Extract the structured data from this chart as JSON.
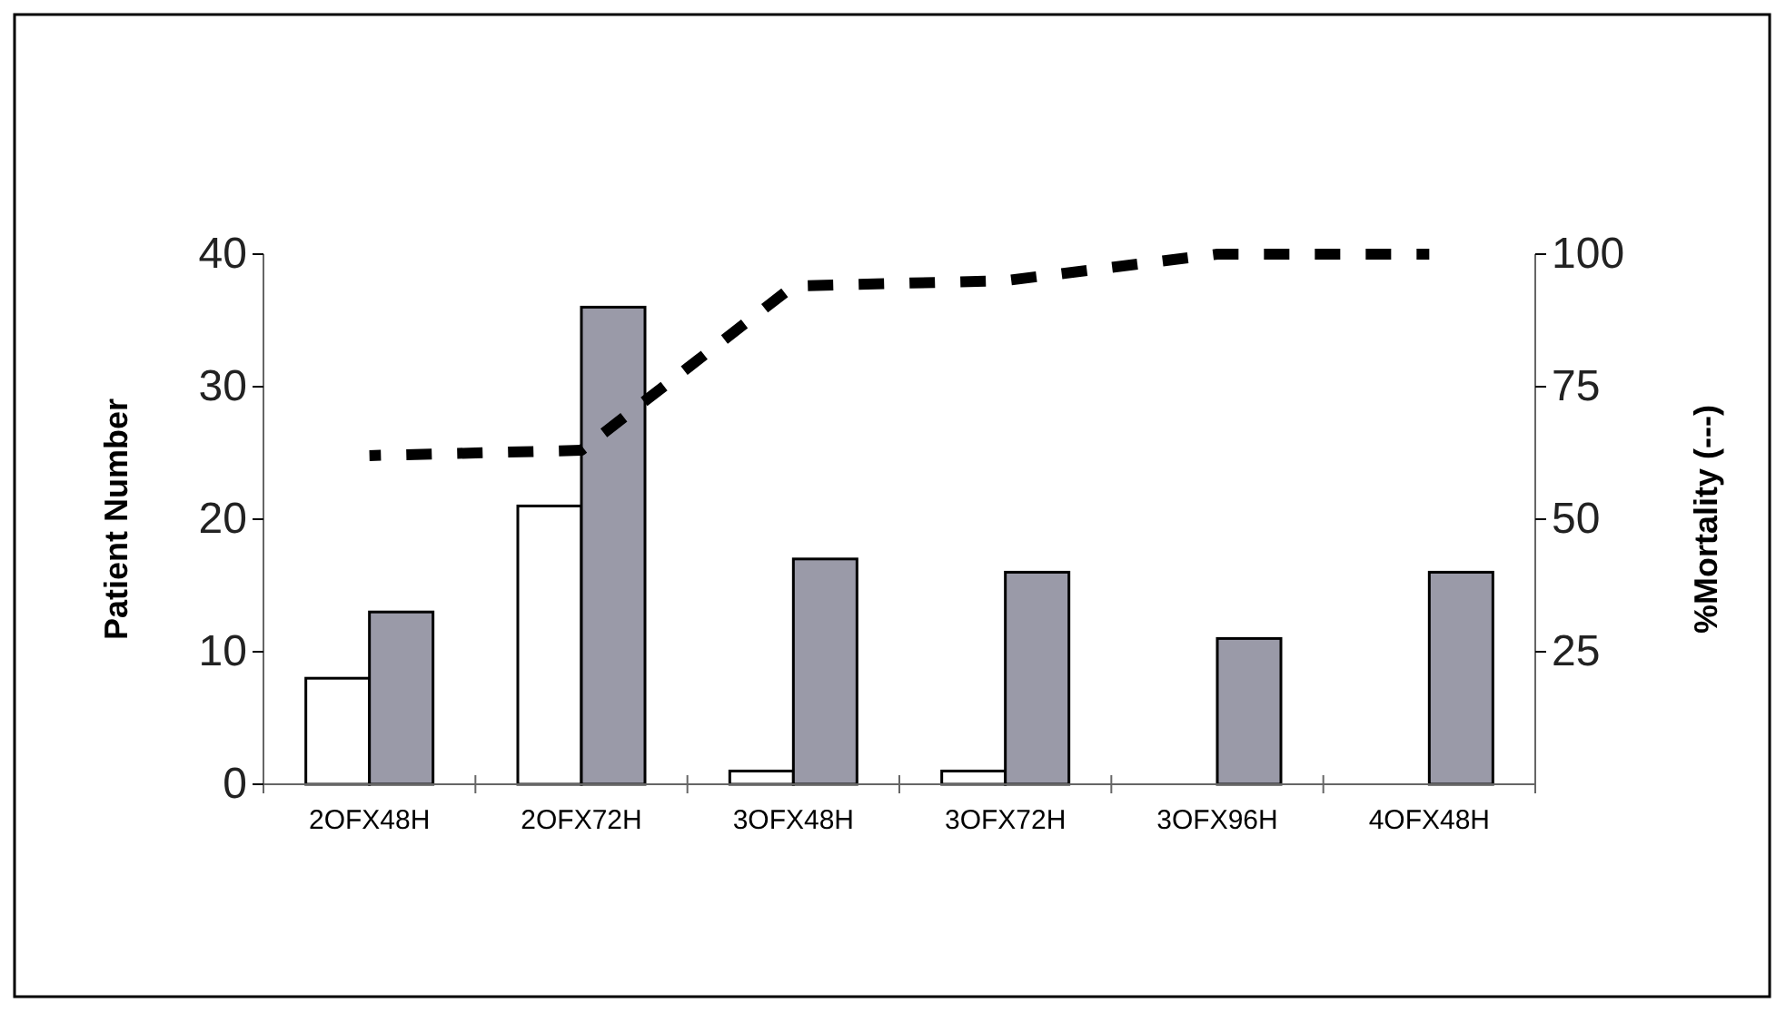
{
  "chart_data": {
    "type": "bar",
    "categories": [
      "2OFX48H",
      "2OFX72H",
      "3OFX48H",
      "3OFX72H",
      "3OFX96H",
      "4OFX48H"
    ],
    "series": [
      {
        "color": "#ffffff",
        "values": [
          8,
          21,
          1,
          1,
          0,
          0
        ]
      },
      {
        "color": "#9a9aa8",
        "values": [
          13,
          36,
          17,
          16,
          11,
          16
        ]
      },
      {
        "type": "line",
        "axis": "y2",
        "color": "#000000",
        "line_style": "dashed",
        "values": [
          62,
          63,
          94,
          95,
          100,
          100
        ]
      }
    ],
    "ylabel": "Patient Number",
    "y2label": "%Mortality (---)",
    "ylim": [
      0,
      40
    ],
    "yticks": [
      0,
      10,
      20,
      30,
      40
    ],
    "y2lim": [
      0,
      100
    ],
    "y2ticks": [
      25,
      50,
      75,
      100
    ],
    "grid": false
  }
}
